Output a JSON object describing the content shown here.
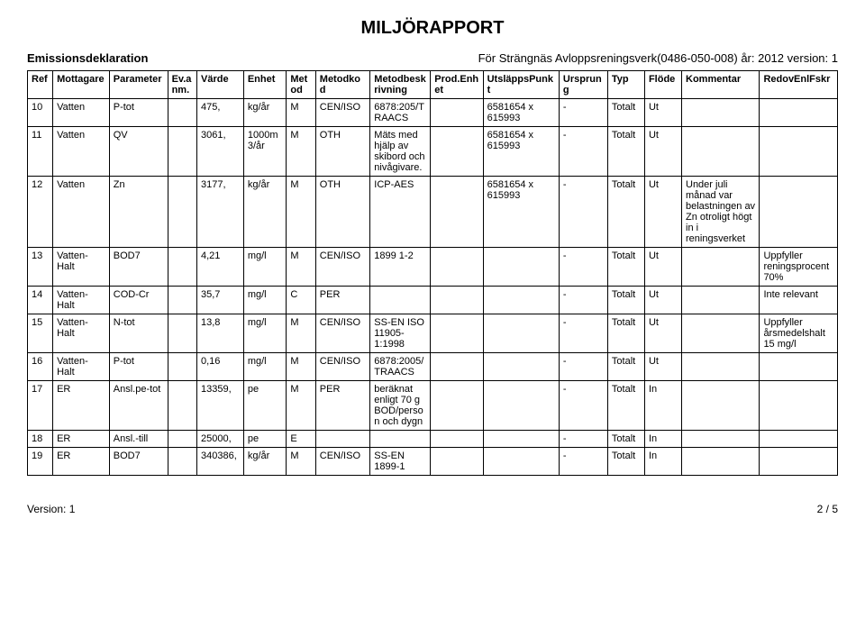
{
  "title": "MILJÖRAPPORT",
  "header": {
    "left": "Emissionsdeklaration",
    "right": "För Strängnäs Avloppsreningsverk(0486-050-008) år: 2012 version: 1"
  },
  "columns": [
    "Ref",
    "Mottagare",
    "Parameter",
    "Ev.anm.",
    "Värde",
    "Enhet",
    "Metod",
    "Metodkod",
    "Metodbeskrivning",
    "Prod.Enhet",
    "UtsläppsPunkt",
    "Ursprung",
    "Typ",
    "Flöde",
    "Kommentar",
    "RedovEnlFskr"
  ],
  "rows": [
    {
      "ref": "10",
      "mott": "Vatten",
      "param": "P-tot",
      "ev": "",
      "varde": "475,",
      "enhet": "kg/år",
      "metod": "M",
      "mkod": "CEN/ISO",
      "mbesk": "6878:205/TRAACS",
      "penh": "",
      "up": "6581654 x 615993",
      "urs": "-",
      "typ": "Totalt",
      "flode": "Ut",
      "komm": "",
      "redo": ""
    },
    {
      "ref": "11",
      "mott": "Vatten",
      "param": "QV",
      "ev": "",
      "varde": "3061,",
      "enhet": "1000m3/år",
      "metod": "M",
      "mkod": "OTH",
      "mbesk": "Mäts med hjälp av skibord och nivågivare.",
      "penh": "",
      "up": "6581654 x 615993",
      "urs": "-",
      "typ": "Totalt",
      "flode": "Ut",
      "komm": "",
      "redo": ""
    },
    {
      "ref": "12",
      "mott": "Vatten",
      "param": "Zn",
      "ev": "",
      "varde": "3177,",
      "enhet": "kg/år",
      "metod": "M",
      "mkod": "OTH",
      "mbesk": "ICP-AES",
      "penh": "",
      "up": "6581654 x 615993",
      "urs": "-",
      "typ": "Totalt",
      "flode": "Ut",
      "komm": "Under juli månad var belastningen av Zn otroligt högt in i reningsverket",
      "redo": ""
    },
    {
      "ref": "13",
      "mott": "Vatten-Halt",
      "param": "BOD7",
      "ev": "",
      "varde": "4,21",
      "enhet": "mg/l",
      "metod": "M",
      "mkod": "CEN/ISO",
      "mbesk": "1899 1-2",
      "penh": "",
      "up": "",
      "urs": "-",
      "typ": "Totalt",
      "flode": "Ut",
      "komm": "",
      "redo": "Uppfyller reningsprocent 70%"
    },
    {
      "ref": "14",
      "mott": "Vatten-Halt",
      "param": "COD-Cr",
      "ev": "",
      "varde": "35,7",
      "enhet": "mg/l",
      "metod": "C",
      "mkod": "PER",
      "mbesk": "",
      "penh": "",
      "up": "",
      "urs": "-",
      "typ": "Totalt",
      "flode": "Ut",
      "komm": "",
      "redo": "Inte relevant"
    },
    {
      "ref": "15",
      "mott": "Vatten-Halt",
      "param": "N-tot",
      "ev": "",
      "varde": "13,8",
      "enhet": "mg/l",
      "metod": "M",
      "mkod": "CEN/ISO",
      "mbesk": "SS-EN ISO 11905-1:1998",
      "penh": "",
      "up": "",
      "urs": "-",
      "typ": "Totalt",
      "flode": "Ut",
      "komm": "",
      "redo": "Uppfyller årsmedelshalt 15 mg/l"
    },
    {
      "ref": "16",
      "mott": "Vatten-Halt",
      "param": "P-tot",
      "ev": "",
      "varde": "0,16",
      "enhet": "mg/l",
      "metod": "M",
      "mkod": "CEN/ISO",
      "mbesk": "6878:2005/TRAACS",
      "penh": "",
      "up": "",
      "urs": "-",
      "typ": "Totalt",
      "flode": "Ut",
      "komm": "",
      "redo": ""
    },
    {
      "ref": "17",
      "mott": "ER",
      "param": "Ansl.pe-tot",
      "ev": "",
      "varde": "13359,",
      "enhet": "pe",
      "metod": "M",
      "mkod": "PER",
      "mbesk": "beräknat enligt 70 g BOD/person och dygn",
      "penh": "",
      "up": "",
      "urs": "-",
      "typ": "Totalt",
      "flode": "In",
      "komm": "",
      "redo": ""
    },
    {
      "ref": "18",
      "mott": "ER",
      "param": "Ansl.-till",
      "ev": "",
      "varde": "25000,",
      "enhet": "pe",
      "metod": "E",
      "mkod": "",
      "mbesk": "",
      "penh": "",
      "up": "",
      "urs": "-",
      "typ": "Totalt",
      "flode": "In",
      "komm": "",
      "redo": ""
    },
    {
      "ref": "19",
      "mott": "ER",
      "param": "BOD7",
      "ev": "",
      "varde": "340386,",
      "enhet": "kg/år",
      "metod": "M",
      "mkod": "CEN/ISO",
      "mbesk": "SS-EN 1899-1",
      "penh": "",
      "up": "",
      "urs": "-",
      "typ": "Totalt",
      "flode": "In",
      "komm": "",
      "redo": ""
    }
  ],
  "footer": {
    "version_label": "Version: 1",
    "page": "2 / 5"
  }
}
